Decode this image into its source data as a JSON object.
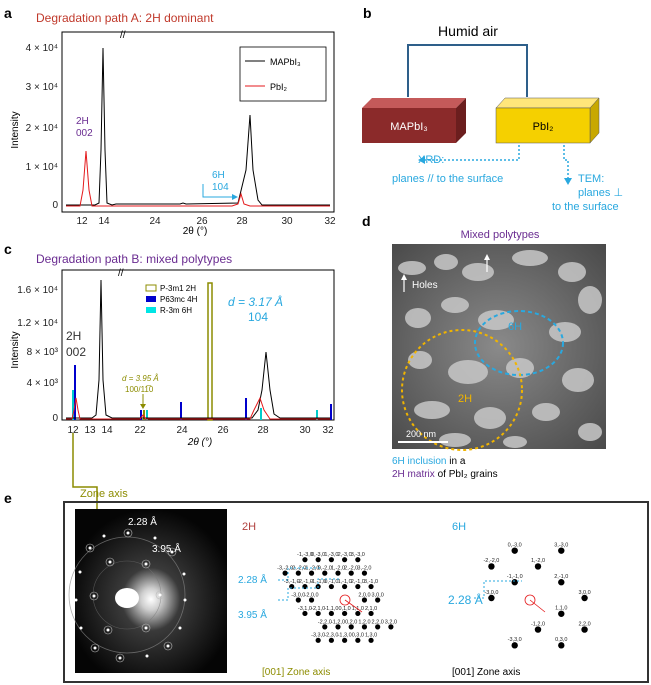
{
  "colors": {
    "mapbi3": "#000000",
    "pbi2": "#e41a1c",
    "purple": "#6a2c91",
    "cyan": "#29a8df",
    "olive": "#8c8c00",
    "blue": "#0000cc",
    "brown_box": "#8b2a2a",
    "yellow_box": "#f5d000",
    "darkred": "#b0413e"
  },
  "panel_a": {
    "letter": "a",
    "title": "Degradation path A: 2H dominant",
    "ylabel": "Intensity",
    "xlabel": "2θ (°)",
    "xticks": [
      "12",
      "14",
      "24",
      "26",
      "28",
      "30",
      "32"
    ],
    "yticks": [
      "0",
      "1 × 10⁴",
      "2 × 10⁴",
      "3 × 10⁴",
      "4 × 10⁴"
    ],
    "legend": [
      "MAPbI₃",
      "PbI₂"
    ],
    "ann_2h": [
      "2H",
      "002"
    ],
    "ann_6h": [
      "6H",
      "104"
    ]
  },
  "panel_b": {
    "letter": "b",
    "title": "Humid air",
    "box1": "MAPbI₃",
    "box2": "PbI₂",
    "xrd": [
      "XRD:",
      "planes // to the surface"
    ],
    "tem": [
      "TEM:",
      "planes ⊥",
      "to the surface"
    ]
  },
  "panel_c": {
    "letter": "c",
    "title": "Degradation path B: mixed polytypes",
    "ylabel": "Intensity",
    "xlabel": "2θ (°)",
    "xticks": [
      "12",
      "13",
      "14",
      "22",
      "24",
      "26",
      "28",
      "30",
      "32"
    ],
    "yticks": [
      "0",
      "4 × 10³",
      "8 × 10³",
      "1.2 × 10⁴",
      "1.6 × 10⁴"
    ],
    "legend": [
      "P-3m1 2H",
      "P63mc 4H",
      "R-3m 6H"
    ],
    "ann_2h": [
      "2H",
      "002"
    ],
    "ann_d395": [
      "d = 3.95 Å",
      "100/11̅0"
    ],
    "ann_d317": [
      "d = 3.17 Å",
      "104"
    ]
  },
  "panel_d": {
    "letter": "d",
    "title": "Mixed polytypes",
    "holes": "Holes",
    "label_6h": "6H",
    "label_2h": "2H",
    "scale": "200 nm",
    "caption_1a": "6H inclusion",
    "caption_1b": " in a",
    "caption_2a": "2H matrix",
    "caption_2b": " of PbI₂ grains"
  },
  "panel_e": {
    "letter": "e",
    "zone_axis": "Zone axis",
    "d228": "2.28 Å",
    "d395": "3.95 Å",
    "label_2h": "2H",
    "label_6h": "6H",
    "caption_2h": "[001] Zone axis",
    "caption_6h": "[001] Zone axis",
    "arrow_228": "2.28 Å",
    "arrow_395": "3.95 Å",
    "arrow6_228": "2.28 Å",
    "spots_2h": [
      "-3,-2,0",
      "-2,-2,0",
      "-1,-3,0",
      "0,-3,0",
      "-3,-1,0",
      "-2,-1,0",
      "-1,-2,0",
      "1,-3,0",
      "2,-3,0",
      "-3,0,0",
      "-2,0,0",
      "0,-2,0",
      "1,-2,0",
      "-1,-1,0",
      "0,-1,0",
      "3,-3,0",
      "2,-2,0",
      "-3,1,0",
      "-2,1,0",
      "1,-1,0",
      "3,-2,0",
      "-1,1,0",
      "2,-1,0",
      "-2,2,0",
      "0,1,0",
      "3,-1,0",
      "-3,3,0",
      "2,0,0",
      "-1,2,0",
      "1,1,0",
      "3,0,0",
      "-2,3,0",
      "0,2,0",
      "2,1,0",
      "1,2,0",
      "0,3,0",
      "-1,3,0",
      "2,2,0",
      "1,3,0",
      "3,2,0"
    ],
    "spots_6h": [
      "-2,-2,0",
      "0,-3,0",
      "-3,0,0",
      "-1,-1,0",
      "1,-2,0",
      "3,-3,0",
      "2,-1,0",
      "-3,3,0",
      "-1,2,0",
      "1,1,0",
      "3,0,0",
      "0,3,0",
      "2,2,0"
    ]
  }
}
